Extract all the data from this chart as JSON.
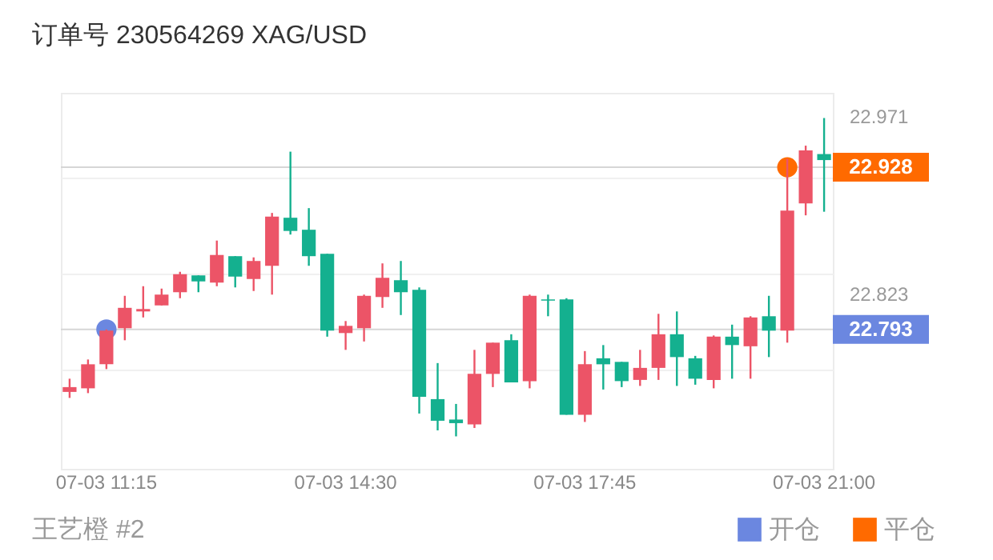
{
  "chart_data": {
    "type": "candlestick",
    "title": "订单号 230564269    XAG/USD",
    "categories": [
      null,
      null,
      "07-03 11:15",
      null,
      null,
      null,
      null,
      null,
      null,
      null,
      null,
      null,
      null,
      null,
      null,
      "07-03 14:30",
      null,
      null,
      null,
      null,
      null,
      null,
      null,
      null,
      null,
      null,
      null,
      null,
      "07-03 17:45",
      null,
      null,
      null,
      null,
      null,
      null,
      null,
      null,
      null,
      null,
      null,
      null,
      "07-03 21:00"
    ],
    "ohlc": [
      [
        22.741,
        22.752,
        22.736,
        22.745
      ],
      [
        22.744,
        22.768,
        22.74,
        22.764
      ],
      [
        22.764,
        22.793,
        22.76,
        22.792
      ],
      [
        22.794,
        22.821,
        22.784,
        22.811
      ],
      [
        22.808,
        22.829,
        22.803,
        22.81
      ],
      [
        22.813,
        22.827,
        22.813,
        22.822
      ],
      [
        22.824,
        22.841,
        22.819,
        22.839
      ],
      [
        22.838,
        22.838,
        22.824,
        22.833
      ],
      [
        22.832,
        22.867,
        22.829,
        22.855
      ],
      [
        22.854,
        22.854,
        22.828,
        22.837
      ],
      [
        22.835,
        22.853,
        22.825,
        22.85
      ],
      [
        22.846,
        22.89,
        22.822,
        22.887
      ],
      [
        22.886,
        22.941,
        22.872,
        22.875
      ],
      [
        22.876,
        22.894,
        22.846,
        22.854
      ],
      [
        22.856,
        22.856,
        22.787,
        22.792
      ],
      [
        22.79,
        22.8,
        22.776,
        22.796
      ],
      [
        22.794,
        22.822,
        22.783,
        22.821
      ],
      [
        22.82,
        22.848,
        22.811,
        22.836
      ],
      [
        22.834,
        22.85,
        22.805,
        22.824
      ],
      [
        22.826,
        22.828,
        22.723,
        22.737
      ],
      [
        22.735,
        22.765,
        22.709,
        22.717
      ],
      [
        22.718,
        22.731,
        22.704,
        22.715
      ],
      [
        22.714,
        22.776,
        22.711,
        22.756
      ],
      [
        22.756,
        22.782,
        22.745,
        22.782
      ],
      [
        22.784,
        22.789,
        22.749,
        22.749
      ],
      [
        22.75,
        22.822,
        22.744,
        22.821
      ],
      [
        22.818,
        22.822,
        22.804,
        22.817
      ],
      [
        22.818,
        22.819,
        22.722,
        22.722
      ],
      [
        22.722,
        22.775,
        22.716,
        22.764
      ],
      [
        22.769,
        22.78,
        22.743,
        22.764
      ],
      [
        22.766,
        22.766,
        22.745,
        22.75
      ],
      [
        22.751,
        22.776,
        22.746,
        22.761
      ],
      [
        22.761,
        22.806,
        22.751,
        22.789
      ],
      [
        22.789,
        22.808,
        22.746,
        22.77
      ],
      [
        22.769,
        22.771,
        22.747,
        22.752
      ],
      [
        22.751,
        22.788,
        22.744,
        22.787
      ],
      [
        22.787,
        22.797,
        22.752,
        22.78
      ],
      [
        22.779,
        22.804,
        22.752,
        22.803
      ],
      [
        22.804,
        22.821,
        22.77,
        22.792
      ],
      [
        22.792,
        22.935,
        22.782,
        22.892
      ],
      [
        22.898,
        22.946,
        22.888,
        22.942
      ],
      [
        22.939,
        22.969,
        22.891,
        22.934
      ]
    ],
    "colors": [
      "#ec5467",
      "#ec5467",
      "#ec5467",
      "#ec5467",
      "#ec5467",
      "#ec5467",
      "#ec5467",
      "#14b08f",
      "#ec5467",
      "#14b08f",
      "#ec5467",
      "#ec5467",
      "#14b08f",
      "#14b08f",
      "#14b08f",
      "#ec5467",
      "#ec5467",
      "#ec5467",
      "#14b08f",
      "#14b08f",
      "#14b08f",
      "#14b08f",
      "#ec5467",
      "#ec5467",
      "#14b08f",
      "#ec5467",
      "#14b08f",
      "#14b08f",
      "#ec5467",
      "#14b08f",
      "#14b08f",
      "#ec5467",
      "#ec5467",
      "#14b08f",
      "#14b08f",
      "#ec5467",
      "#14b08f",
      "#ec5467",
      "#14b08f",
      "#ec5467",
      "#ec5467",
      "#14b08f"
    ],
    "series": [
      {
        "name": "开仓",
        "type": "scatter",
        "color": "#6b87e0",
        "values": [
          null,
          null,
          22.793,
          null,
          null,
          null,
          null,
          null,
          null,
          null,
          null,
          null,
          null,
          null,
          null,
          null,
          null,
          null,
          null,
          null,
          null,
          null,
          null,
          null,
          null,
          null,
          null,
          null,
          null,
          null,
          null,
          null,
          null,
          null,
          null,
          null,
          null,
          null,
          null,
          null,
          null,
          null
        ]
      },
      {
        "name": "平仓",
        "type": "scatter",
        "color": "#ff6a00",
        "values": [
          null,
          null,
          null,
          null,
          null,
          null,
          null,
          null,
          null,
          null,
          null,
          null,
          null,
          null,
          null,
          null,
          null,
          null,
          null,
          null,
          null,
          null,
          null,
          null,
          null,
          null,
          null,
          null,
          null,
          null,
          null,
          null,
          null,
          null,
          null,
          null,
          null,
          null,
          null,
          22.928,
          null,
          null
        ]
      }
    ],
    "ylim": [
      22.677,
      22.99
    ],
    "yticks": [
      22.971,
      {
        "value": 22.92,
        "label": null
      },
      {
        "value": 22.84,
        "label": null
      },
      22.823,
      {
        "value": 22.76,
        "label": null
      }
    ],
    "ref_lines": [
      {
        "axis": "y",
        "value": 22.928,
        "label": "22.928"
      },
      {
        "axis": "y",
        "value": 22.793,
        "label": "22.793"
      }
    ],
    "annotations": [
      "王艺橙 #2"
    ],
    "grid": "y",
    "marker": "circle",
    "legend": "bottom right"
  }
}
